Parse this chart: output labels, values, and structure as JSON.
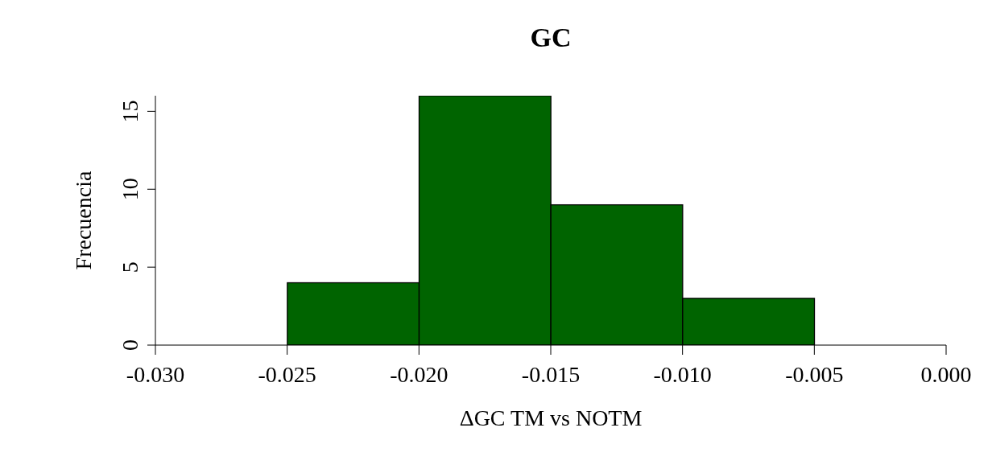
{
  "chart_data": {
    "type": "histogram",
    "title": "GC",
    "xlabel": "ΔGC TM vs NOTM",
    "ylabel": "Frecuencia",
    "bins": [
      -0.025,
      -0.02,
      -0.015,
      -0.01,
      -0.005
    ],
    "values": [
      4,
      16,
      9,
      3
    ],
    "color": "#006400",
    "xlim": [
      -0.03,
      0
    ],
    "xticks": [
      {
        "value": -0.03,
        "label": "-0.030"
      },
      -0.025,
      {
        "value": -0.02,
        "label": "-0.020"
      },
      -0.015,
      {
        "value": -0.01,
        "label": "-0.010"
      },
      -0.005,
      {
        "value": 0,
        "label": "0.000"
      }
    ],
    "ylim": [
      0,
      16
    ],
    "yticks": [
      0,
      5,
      10,
      15
    ],
    "grid": false
  }
}
